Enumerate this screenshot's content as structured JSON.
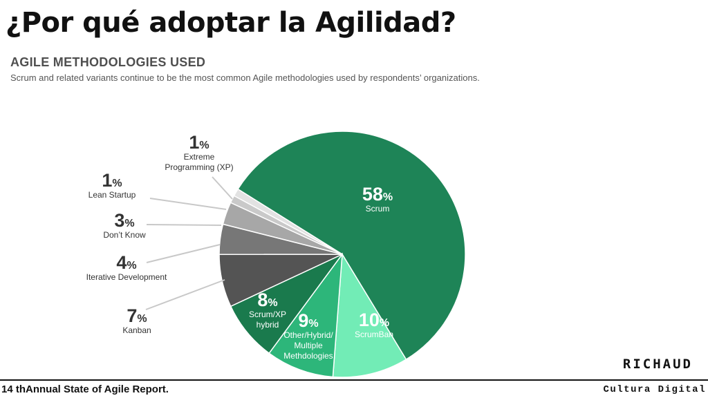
{
  "slide": {
    "title": "¿Por qué adoptar la Agilidad?",
    "footer": "14 thAnnual State of Agile Report.",
    "brand": "RICHAUD",
    "brand_sub": "Cultura Digital"
  },
  "chart_data": {
    "type": "pie",
    "title": "AGILE METHODOLOGIES USED",
    "subtitle": "Scrum and related variants continue to be the most common Agile methodologies used by respondents’ organizations.",
    "unit": "%",
    "slices": [
      {
        "label": "Scrum",
        "value": 58,
        "color": "#1e8457",
        "label_color": "#ffffff"
      },
      {
        "label": "ScrumBan",
        "value": 10,
        "color": "#72ecb6",
        "label_color": "#ffffff"
      },
      {
        "label": "Other/Hybrid/ Multiple Methdologies",
        "value": 9,
        "color": "#2db67a",
        "label_color": "#ffffff"
      },
      {
        "label": "Scrum/XP hybrid",
        "value": 8,
        "color": "#1a7a4d",
        "label_color": "#ffffff"
      },
      {
        "label": "Kanban",
        "value": 7,
        "color": "#545454",
        "label_color": "#333333"
      },
      {
        "label": "Iterative Development",
        "value": 4,
        "color": "#777777",
        "label_color": "#333333"
      },
      {
        "label": "Don’t Know",
        "value": 3,
        "color": "#a7a7a7",
        "label_color": "#333333"
      },
      {
        "label": "Lean Startup",
        "value": 1,
        "color": "#c9c9c9",
        "label_color": "#333333"
      },
      {
        "label": "Extreme Programming (XP)",
        "value": 1,
        "color": "#e2e2e2",
        "label_color": "#333333"
      }
    ]
  }
}
